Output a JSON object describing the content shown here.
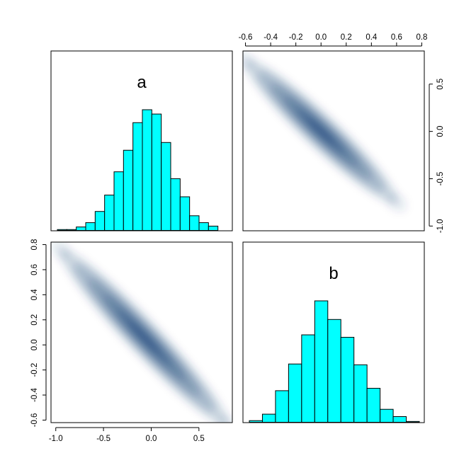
{
  "chart_data": [
    {
      "type": "bar",
      "panel": "top-left",
      "title": "a",
      "bin_edges": [
        -1.0,
        -0.9,
        -0.8,
        -0.7,
        -0.6,
        -0.5,
        -0.4,
        -0.3,
        -0.2,
        -0.1,
        0.0,
        0.1,
        0.2,
        0.3,
        0.4,
        0.5,
        0.6,
        0.7,
        0.8
      ],
      "values": [
        1,
        1,
        4,
        9,
        22,
        41,
        68,
        93,
        125,
        140,
        135,
        102,
        60,
        39,
        17,
        9,
        5,
        0
      ],
      "axes": "none"
    },
    {
      "type": "heatmap",
      "panel": "top-right",
      "kind": "smoothScatter density",
      "color": "#08306b",
      "xlim": [
        -0.62,
        0.82
      ],
      "ylim": [
        -1.05,
        0.85
      ],
      "x_ticks": [
        "-0.6",
        "-0.4",
        "-0.2",
        "0.0",
        "0.2",
        "0.4",
        "0.6",
        "0.8"
      ],
      "y_ticks": [
        "-1.0",
        "-0.5",
        "0.0",
        "0.5"
      ],
      "x_tick_values": [
        -0.6,
        -0.4,
        -0.2,
        0.0,
        0.2,
        0.4,
        0.6,
        0.8
      ],
      "y_tick_values": [
        -1.0,
        -0.5,
        0.0,
        0.5
      ],
      "x_axis_side": "top",
      "y_axis_side": "right",
      "density_centre": [
        0.0,
        0.0
      ],
      "trend": {
        "slope": -1.25,
        "intercept": 0.0,
        "x_range": [
          -0.6,
          0.6
        ]
      }
    },
    {
      "type": "heatmap",
      "panel": "bottom-left",
      "kind": "smoothScatter density",
      "color": "#08306b",
      "xlim": [
        -1.05,
        0.85
      ],
      "ylim": [
        -0.62,
        0.82
      ],
      "x_ticks": [
        "-1.0",
        "-0.5",
        "0.0",
        "0.5"
      ],
      "y_ticks": [
        "-0.6",
        "-0.4",
        "-0.2",
        "0.0",
        "0.2",
        "0.4",
        "0.6",
        "0.8"
      ],
      "x_tick_values": [
        -1.0,
        -0.5,
        0.0,
        0.5
      ],
      "y_tick_values": [
        -0.6,
        -0.4,
        -0.2,
        0.0,
        0.2,
        0.4,
        0.6,
        0.8
      ],
      "x_axis_side": "bottom",
      "y_axis_side": "left",
      "density_centre": [
        0.0,
        0.0
      ],
      "trend": {
        "slope": -0.8,
        "intercept": 0.0,
        "x_range": [
          -0.95,
          0.8
        ]
      }
    },
    {
      "type": "bar",
      "panel": "bottom-right",
      "title": "b",
      "bin_edges": [
        -0.6,
        -0.5,
        -0.4,
        -0.3,
        -0.2,
        -0.1,
        0.0,
        0.1,
        0.2,
        0.3,
        0.4,
        0.5,
        0.6,
        0.7
      ],
      "values": [
        2,
        10,
        39,
        72,
        108,
        150,
        127,
        105,
        71,
        42,
        16,
        7,
        1
      ],
      "axes": "none"
    }
  ],
  "colors": {
    "histogram_fill": "#00ffff",
    "histogram_stroke": "#000000",
    "density": "#08306b",
    "frame": "#000000"
  }
}
